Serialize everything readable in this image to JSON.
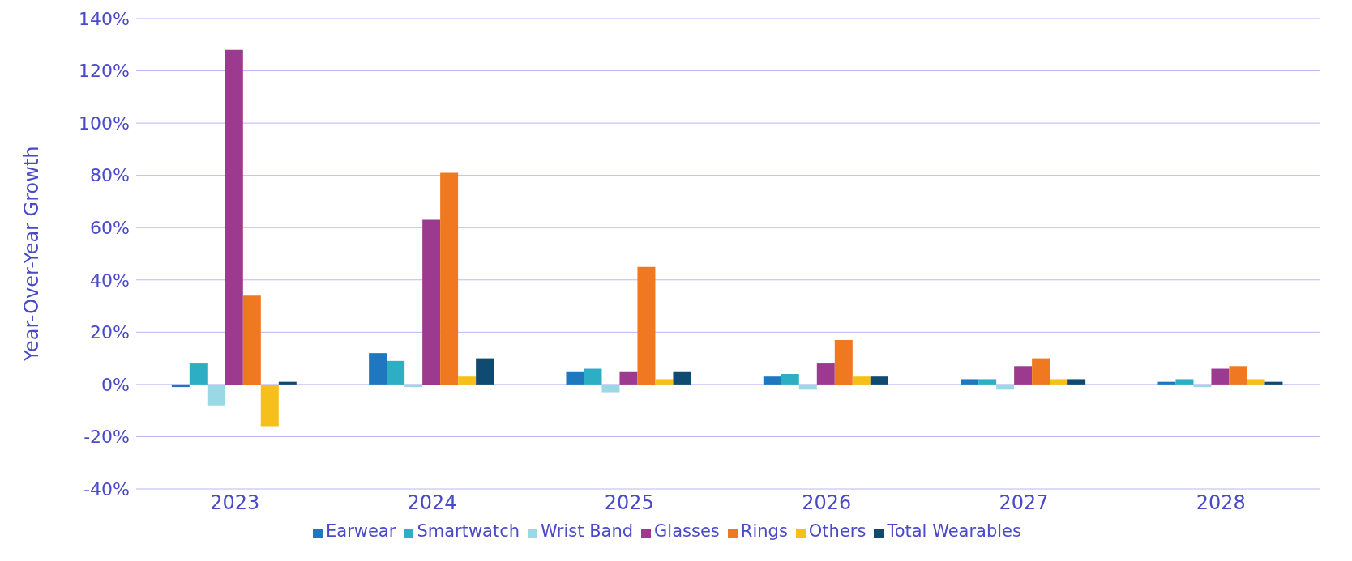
{
  "chart_data": {
    "type": "bar",
    "ylabel": "Year-Over-Year Growth",
    "categories": [
      "2023",
      "2024",
      "2025",
      "2026",
      "2027",
      "2028"
    ],
    "series": [
      {
        "name": "Earwear",
        "color": "#1f77c0",
        "values": [
          -1,
          12,
          5,
          3,
          2,
          1
        ]
      },
      {
        "name": "Smartwatch",
        "color": "#2eaec4",
        "values": [
          8,
          9,
          6,
          4,
          2,
          2
        ]
      },
      {
        "name": "Wrist Band",
        "color": "#9ad9e4",
        "values": [
          -8,
          -1,
          -3,
          -2,
          -2,
          -1
        ]
      },
      {
        "name": "Glasses",
        "color": "#9b3a8f",
        "values": [
          128,
          63,
          5,
          8,
          7,
          6
        ]
      },
      {
        "name": "Rings",
        "color": "#f07820",
        "values": [
          34,
          81,
          45,
          17,
          10,
          7
        ]
      },
      {
        "name": "Others",
        "color": "#f5c01a",
        "values": [
          -16,
          3,
          2,
          3,
          2,
          2
        ]
      },
      {
        "name": "Total Wearables",
        "color": "#0f4a70",
        "values": [
          1,
          10,
          5,
          3,
          2,
          1
        ]
      }
    ],
    "ylim": [
      -40,
      140
    ],
    "yticks": [
      {
        "value": -40,
        "label": "-40%"
      },
      {
        "value": -20,
        "label": "-20%"
      },
      {
        "value": 0,
        "label": "0%"
      },
      {
        "value": 20,
        "label": "20%"
      },
      {
        "value": 40,
        "label": "40%"
      },
      {
        "value": 60,
        "label": "60%"
      },
      {
        "value": 80,
        "label": "80%"
      },
      {
        "value": 100,
        "label": "100%"
      },
      {
        "value": 120,
        "label": "120%"
      },
      {
        "value": 140,
        "label": "140%"
      }
    ],
    "grid": "y",
    "legend": "bottom"
  }
}
